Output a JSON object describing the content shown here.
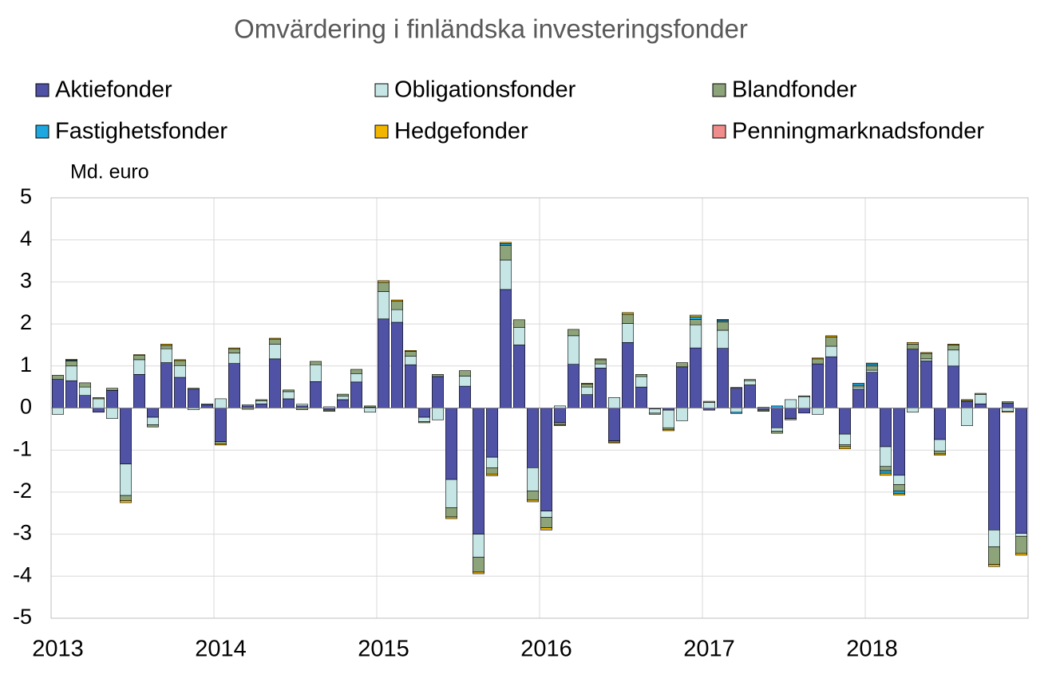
{
  "chart_data": {
    "type": "stacked_bar",
    "title": "Omvärdering i finländska investeringsfonder",
    "y_label": "Md. euro",
    "categories": [
      "2013",
      null,
      null,
      null,
      null,
      null,
      null,
      null,
      null,
      null,
      null,
      null,
      "2014",
      null,
      null,
      null,
      null,
      null,
      null,
      null,
      null,
      null,
      null,
      null,
      "2015",
      null,
      null,
      null,
      null,
      null,
      null,
      null,
      null,
      null,
      null,
      null,
      "2016",
      null,
      null,
      null,
      null,
      null,
      null,
      null,
      null,
      null,
      null,
      null,
      "2017",
      null,
      null,
      null,
      null,
      null,
      null,
      null,
      null,
      null,
      null,
      null,
      "2018",
      null,
      null,
      null,
      null,
      null,
      null,
      null,
      null,
      null,
      null,
      null
    ],
    "series": [
      {
        "name": "Aktiefonder",
        "color": "#4f52a5",
        "values": [
          0.68,
          0.65,
          0.3,
          -0.1,
          0.42,
          -1.33,
          0.8,
          -0.22,
          1.08,
          0.73,
          0.45,
          0.08,
          -0.8,
          1.06,
          0.05,
          0.1,
          1.17,
          0.22,
          0.05,
          0.63,
          -0.05,
          0.2,
          0.62,
          0.02,
          2.12,
          2.04,
          1.03,
          -0.22,
          0.75,
          -1.7,
          0.52,
          -3.0,
          -1.17,
          2.82,
          1.5,
          -1.42,
          -2.45,
          -0.35,
          1.04,
          0.32,
          0.95,
          -0.78,
          1.56,
          0.5,
          -0.02,
          -0.05,
          0.98,
          1.43,
          -0.05,
          1.42,
          0.47,
          0.55,
          -0.05,
          -0.47,
          -0.25,
          -0.12,
          1.05,
          1.22,
          -0.62,
          0.45,
          0.85,
          -0.92,
          -1.6,
          1.4,
          1.12,
          -0.75,
          1.0,
          0.15,
          0.1,
          -2.9,
          0.12,
          -2.98
        ]
      },
      {
        "name": "Obligationsfonder",
        "color": "#c6e6e6",
        "values": [
          -0.15,
          0.35,
          0.2,
          0.22,
          -0.25,
          -0.75,
          0.35,
          -0.18,
          0.33,
          0.28,
          -0.04,
          0.02,
          0.22,
          0.25,
          0.03,
          0.07,
          0.35,
          0.17,
          0.04,
          0.4,
          0.03,
          0.08,
          0.2,
          -0.1,
          0.65,
          0.3,
          0.2,
          -0.1,
          -0.28,
          -0.67,
          0.24,
          -0.55,
          -0.25,
          0.7,
          0.42,
          -0.55,
          -0.15,
          0.05,
          0.68,
          0.18,
          0.1,
          0.25,
          0.45,
          0.25,
          -0.1,
          -0.42,
          -0.3,
          0.55,
          0.13,
          0.43,
          -0.1,
          0.1,
          0.02,
          -0.08,
          0.2,
          0.27,
          -0.15,
          0.25,
          -0.25,
          0.05,
          0.05,
          -0.47,
          -0.22,
          -0.1,
          0.05,
          -0.27,
          0.38,
          -0.42,
          0.22,
          -0.4,
          -0.08,
          -0.07
        ]
      },
      {
        "name": "Blandfonder",
        "color": "#8da37a",
        "values": [
          0.1,
          0.12,
          0.1,
          0.03,
          0.05,
          -0.12,
          0.1,
          -0.05,
          0.08,
          0.12,
          0.02,
          0,
          -0.05,
          0.1,
          -0.03,
          0.03,
          0.12,
          0.04,
          -0.04,
          0.08,
          -0.03,
          0.05,
          0.1,
          0.03,
          0.22,
          0.2,
          0.12,
          -0.03,
          0.05,
          -0.22,
          0.13,
          -0.35,
          -0.15,
          0.35,
          0.18,
          -0.22,
          -0.25,
          -0.05,
          0.15,
          0.07,
          0.1,
          -0.03,
          0.22,
          0.05,
          -0.03,
          -0.04,
          0.1,
          0.13,
          0.03,
          0.2,
          0.02,
          0.03,
          -0.03,
          -0.05,
          -0.03,
          0.02,
          0.12,
          0.22,
          -0.05,
          0.04,
          0.1,
          -0.1,
          -0.15,
          0.12,
          0.13,
          -0.07,
          0.12,
          0.03,
          0.03,
          -0.42,
          0.03,
          -0.4
        ]
      },
      {
        "name": "Fastighetsfonder",
        "color": "#1fa7e0",
        "values": [
          0,
          0.02,
          0,
          0,
          0,
          0,
          0,
          0,
          0,
          0,
          0,
          0,
          0,
          0,
          0,
          0,
          0,
          0,
          0,
          0,
          0,
          0,
          0,
          0,
          0,
          0,
          0,
          0,
          0,
          0,
          0,
          0,
          0,
          0.04,
          0,
          0,
          0,
          0,
          0,
          0,
          0,
          0,
          0,
          0,
          0,
          0,
          0,
          0.06,
          0,
          0.04,
          -0.03,
          0,
          0,
          0.05,
          0,
          0,
          0,
          0,
          0,
          0.05,
          0.05,
          -0.06,
          -0.06,
          0,
          0,
          0,
          0,
          0,
          0,
          0,
          0,
          0
        ]
      },
      {
        "name": "Hedgefonder",
        "color": "#f2b600",
        "values": [
          0,
          0.02,
          0,
          0,
          0,
          -0.05,
          0.02,
          0,
          0.03,
          0.02,
          0,
          0,
          -0.03,
          0.02,
          0,
          0,
          0.02,
          0,
          0,
          0,
          0,
          0,
          0,
          0,
          0.04,
          0.03,
          0.02,
          0,
          0,
          -0.04,
          0,
          -0.04,
          -0.04,
          0.03,
          0,
          -0.04,
          -0.05,
          -0.02,
          0,
          0.02,
          0.02,
          -0.02,
          0.04,
          0,
          0,
          -0.03,
          0,
          0.04,
          0,
          0.02,
          0,
          0,
          0,
          0,
          0,
          0,
          0.02,
          0.03,
          -0.05,
          0,
          0.02,
          -0.05,
          -0.04,
          0.04,
          0.02,
          -0.03,
          0.02,
          0.02,
          0,
          -0.05,
          -0.02,
          -0.05
        ]
      },
      {
        "name": "Penningmarknadsfonder",
        "color": "#f08c8c",
        "values": [
          0,
          0,
          0,
          0,
          0,
          0,
          0,
          0,
          0,
          0,
          0,
          0,
          0,
          0,
          0,
          0,
          0,
          0,
          0,
          0,
          0,
          0,
          0,
          0,
          0,
          0,
          0,
          0,
          0,
          0,
          0,
          0,
          0,
          0,
          0,
          0,
          0,
          0,
          0,
          0,
          0,
          0,
          0,
          0,
          0,
          0,
          0,
          0,
          0,
          0,
          0,
          0,
          0,
          0,
          0,
          0,
          0,
          0,
          0,
          0,
          0,
          0,
          0,
          0,
          0,
          0,
          0,
          0,
          0,
          0,
          0,
          0
        ]
      }
    ],
    "ylim": [
      -5,
      5
    ],
    "yticks": [
      -5,
      -4,
      -3,
      -2,
      -1,
      0,
      1,
      2,
      3,
      4,
      5
    ],
    "grid": true
  }
}
